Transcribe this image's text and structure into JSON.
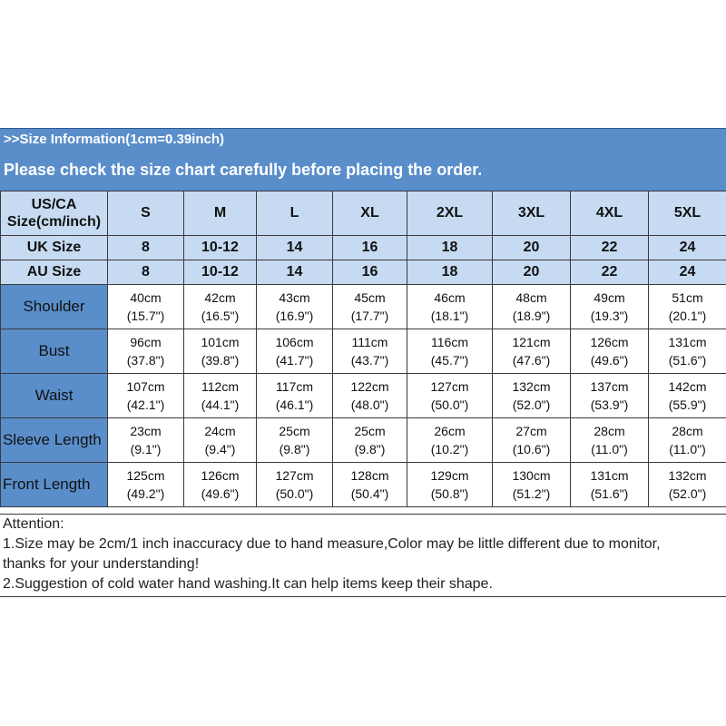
{
  "header": {
    "title": ">>Size Information(1cm=0.39inch)",
    "subtitle": "Please check the size chart carefully before placing the order."
  },
  "table": {
    "us_label_line1": "US/CA",
    "us_label_line2": "Size(cm/inch)",
    "sizes": [
      "S",
      "M",
      "L",
      "XL",
      "2XL",
      "3XL",
      "4XL",
      "5XL"
    ],
    "uk_label": "UK Size",
    "uk": [
      "8",
      "10-12",
      "14",
      "16",
      "18",
      "20",
      "22",
      "24"
    ],
    "au_label": "AU Size",
    "au": [
      "8",
      "10-12",
      "14",
      "16",
      "18",
      "20",
      "22",
      "24"
    ],
    "rows": [
      {
        "label": "Shoulder",
        "cm": [
          "40cm",
          "42cm",
          "43cm",
          "45cm",
          "46cm",
          "48cm",
          "49cm",
          "51cm"
        ],
        "inch": [
          "(15.7\")",
          "(16.5\")",
          "(16.9\")",
          "(17.7\")",
          "(18.1\")",
          "(18.9\")",
          "(19.3\")",
          "(20.1\")"
        ]
      },
      {
        "label": "Bust",
        "cm": [
          "96cm",
          "101cm",
          "106cm",
          "111cm",
          "116cm",
          "121cm",
          "126cm",
          "131cm"
        ],
        "inch": [
          "(37.8\")",
          "(39.8\")",
          "(41.7\")",
          "(43.7\")",
          "(45.7\")",
          "(47.6\")",
          "(49.6\")",
          "(51.6\")"
        ]
      },
      {
        "label": "Waist",
        "cm": [
          "107cm",
          "112cm",
          "117cm",
          "122cm",
          "127cm",
          "132cm",
          "137cm",
          "142cm"
        ],
        "inch": [
          "(42.1\")",
          "(44.1\")",
          "(46.1\")",
          "(48.0\")",
          "(50.0\")",
          "(52.0\")",
          "(53.9\")",
          "(55.9\")"
        ]
      },
      {
        "label": "Sleeve Length",
        "cm": [
          "23cm",
          "24cm",
          "25cm",
          "25cm",
          "26cm",
          "27cm",
          "28cm",
          "28cm"
        ],
        "inch": [
          "(9.1\")",
          "(9.4\")",
          "(9.8\")",
          "(9.8\")",
          "(10.2\")",
          "(10.6\")",
          "(11.0\")",
          "(11.0\")"
        ]
      },
      {
        "label": "Front Length",
        "cm": [
          "125cm",
          "126cm",
          "127cm",
          "128cm",
          "129cm",
          "130cm",
          "131cm",
          "132cm"
        ],
        "inch": [
          "(49.2\")",
          "(49.6\")",
          "(50.0\")",
          "(50.4\")",
          "(50.8\")",
          "(51.2\")",
          "(51.6\")",
          "(52.0\")"
        ]
      }
    ]
  },
  "notes": {
    "heading": "Attention:",
    "line1": "1.Size may be 2cm/1 inch inaccuracy due to hand measure,Color may be little different due to monitor,",
    "line2": "thanks for your understanding!",
    "line3": "2.Suggestion of cold water hand washing.It can help items keep their shape."
  },
  "colors": {
    "header_blue": "#5a8ecb",
    "light_blue": "#c6dbf2",
    "border": "#3a3a3a"
  }
}
